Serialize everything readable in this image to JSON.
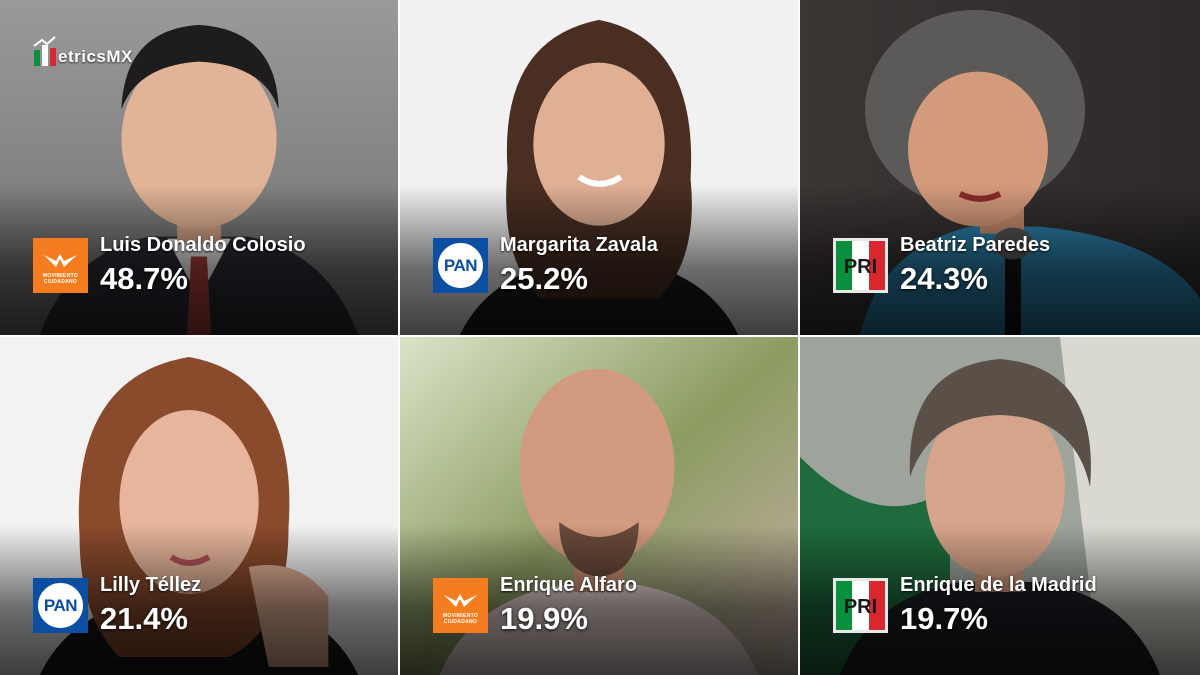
{
  "brand": {
    "name": "etricsMX",
    "logo_icon": "metrics-mx-logo-icon"
  },
  "candidates": [
    {
      "name": "Luis Donaldo Colosio",
      "percent": "48.7%",
      "party": "movimiento-ciudadano",
      "party_text": "MOVIMIENTO CIUDADANO"
    },
    {
      "name": "Margarita Zavala",
      "percent": "25.2%",
      "party": "pan",
      "party_text": "PAN"
    },
    {
      "name": "Beatriz Paredes",
      "percent": "24.3%",
      "party": "pri",
      "party_text": "PRI"
    },
    {
      "name": "Lilly Téllez",
      "percent": "21.4%",
      "party": "pan",
      "party_text": "PAN"
    },
    {
      "name": "Enrique Alfaro",
      "percent": "19.9%",
      "party": "movimiento-ciudadano",
      "party_text": "MOVIMIENTO CIUDADANO"
    },
    {
      "name": "Enrique de la Madrid",
      "percent": "19.7%",
      "party": "pri",
      "party_text": "PRI"
    }
  ],
  "colors": {
    "mc_orange": "#f57d20",
    "pan_blue": "#0b4ea2",
    "pri_green": "#0a8f3c",
    "pri_red": "#d7282f"
  }
}
